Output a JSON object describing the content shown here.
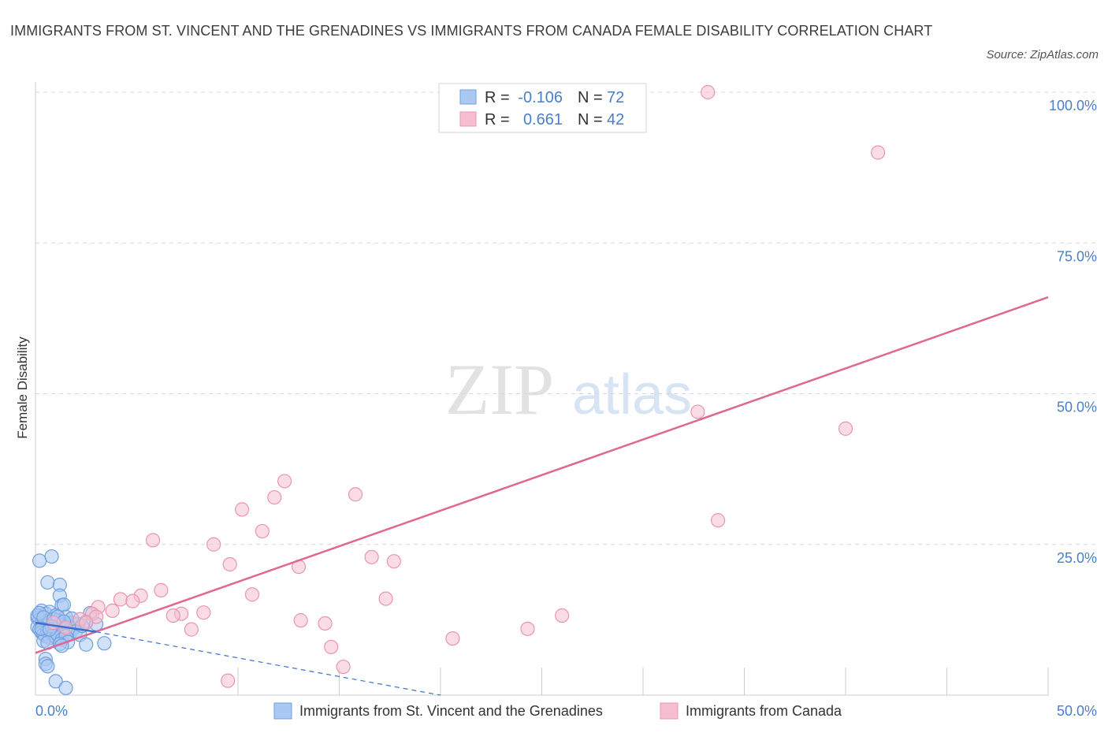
{
  "title": "IMMIGRANTS FROM ST. VINCENT AND THE GRENADINES VS IMMIGRANTS FROM CANADA FEMALE DISABILITY CORRELATION CHART",
  "source": "Source: ZipAtlas.com",
  "watermark": {
    "zip": "ZIP",
    "atlas": "atlas"
  },
  "colors": {
    "blue_fill": "#a9c8f2",
    "blue_stroke": "#6f9fe0",
    "blue_line": "#3a6fd0",
    "pink_fill": "#f6bfd0",
    "pink_stroke": "#e995b2",
    "pink_line": "#e06790",
    "grid": "#d8d8d8",
    "tick_label": "#4a7fc8"
  },
  "legend": {
    "rows": [
      {
        "r_label": "R =",
        "r_value": "-0.106",
        "n_label": "N =",
        "n_value": "72"
      },
      {
        "r_label": "R =",
        "r_value": "0.661",
        "n_label": "N =",
        "n_value": "42"
      }
    ]
  },
  "chart_data": {
    "type": "scatter",
    "title": "IMMIGRANTS FROM ST. VINCENT AND THE GRENADINES VS IMMIGRANTS FROM CANADA FEMALE DISABILITY CORRELATION CHART",
    "xlabel": "",
    "ylabel": "Female Disability",
    "xlim": [
      0,
      50
    ],
    "ylim": [
      0,
      100
    ],
    "x_tick_labels": [
      "0.0%",
      "50.0%"
    ],
    "y_ticks": [
      25,
      50,
      75,
      100
    ],
    "y_tick_labels": [
      "25.0%",
      "50.0%",
      "75.0%",
      "100.0%"
    ],
    "grid": true,
    "legend_position": "top-center",
    "series": [
      {
        "name": "Immigrants from St. Vincent and the Grenadines",
        "color": "#a9c8f2",
        "R": -0.106,
        "N": 72,
        "trend_solid": {
          "x": [
            0.0,
            3.0
          ],
          "y": [
            12.0,
            10.5
          ]
        },
        "trend_dashed": {
          "x": [
            3.0,
            20.0
          ],
          "y": [
            10.5,
            0.0
          ]
        },
        "points": [
          [
            0.2,
            22.3
          ],
          [
            0.8,
            23.0
          ],
          [
            0.6,
            18.7
          ],
          [
            1.2,
            18.3
          ],
          [
            1.2,
            16.5
          ],
          [
            1.3,
            14.9
          ],
          [
            1.4,
            15.0
          ],
          [
            0.3,
            14.0
          ],
          [
            0.5,
            13.5
          ],
          [
            0.7,
            13.8
          ],
          [
            1.0,
            13.2
          ],
          [
            1.5,
            13.0
          ],
          [
            2.7,
            13.6
          ],
          [
            2.5,
            12.2
          ],
          [
            0.1,
            12.8
          ],
          [
            0.2,
            12.5
          ],
          [
            0.3,
            12.0
          ],
          [
            0.4,
            11.8
          ],
          [
            0.5,
            12.3
          ],
          [
            0.6,
            11.5
          ],
          [
            0.7,
            12.1
          ],
          [
            0.8,
            11.2
          ],
          [
            0.9,
            11.9
          ],
          [
            1.0,
            11.0
          ],
          [
            1.1,
            12.4
          ],
          [
            1.2,
            10.8
          ],
          [
            1.3,
            11.6
          ],
          [
            1.4,
            10.5
          ],
          [
            1.6,
            11.4
          ],
          [
            1.7,
            10.2
          ],
          [
            1.8,
            12.0
          ],
          [
            1.9,
            11.1
          ],
          [
            2.0,
            10.6
          ],
          [
            2.1,
            11.8
          ],
          [
            2.2,
            10.0
          ],
          [
            0.1,
            11.3
          ],
          [
            0.2,
            10.9
          ],
          [
            0.3,
            10.4
          ],
          [
            0.4,
            10.1
          ],
          [
            0.5,
            9.8
          ],
          [
            0.6,
            10.7
          ],
          [
            0.7,
            9.5
          ],
          [
            0.8,
            10.3
          ],
          [
            0.9,
            9.9
          ],
          [
            1.0,
            9.6
          ],
          [
            1.1,
            10.0
          ],
          [
            1.3,
            9.2
          ],
          [
            1.5,
            9.8
          ],
          [
            1.6,
            8.8
          ],
          [
            0.4,
            9.0
          ],
          [
            0.6,
            8.7
          ],
          [
            1.2,
            8.5
          ],
          [
            1.3,
            8.2
          ],
          [
            2.5,
            8.4
          ],
          [
            3.4,
            8.6
          ],
          [
            3.0,
            11.8
          ],
          [
            0.1,
            13.2
          ],
          [
            0.2,
            13.6
          ],
          [
            0.4,
            12.9
          ],
          [
            0.9,
            12.6
          ],
          [
            1.1,
            13.0
          ],
          [
            1.8,
            12.7
          ],
          [
            0.3,
            11.0
          ],
          [
            0.5,
            6.0
          ],
          [
            0.5,
            5.2
          ],
          [
            0.6,
            4.8
          ],
          [
            1.0,
            2.3
          ],
          [
            1.5,
            1.2
          ],
          [
            0.8,
            11.4
          ],
          [
            1.4,
            12.2
          ],
          [
            2.3,
            11.5
          ],
          [
            0.7,
            10.9
          ]
        ]
      },
      {
        "name": "Immigrants from Canada",
        "color": "#f6bfd0",
        "R": 0.661,
        "N": 42,
        "trend": {
          "x": [
            0.0,
            50.0
          ],
          "y": [
            7.0,
            66.0
          ]
        },
        "points": [
          [
            33.2,
            100.0
          ],
          [
            41.6,
            90.0
          ],
          [
            32.7,
            47.0
          ],
          [
            40.0,
            44.2
          ],
          [
            12.3,
            35.5
          ],
          [
            11.8,
            32.8
          ],
          [
            15.8,
            33.3
          ],
          [
            10.2,
            30.8
          ],
          [
            11.2,
            27.2
          ],
          [
            33.7,
            29.0
          ],
          [
            5.8,
            25.7
          ],
          [
            8.8,
            25.0
          ],
          [
            9.6,
            21.7
          ],
          [
            13.0,
            21.3
          ],
          [
            16.6,
            22.9
          ],
          [
            17.7,
            22.2
          ],
          [
            6.2,
            17.4
          ],
          [
            10.7,
            16.7
          ],
          [
            17.3,
            16.0
          ],
          [
            5.2,
            16.5
          ],
          [
            4.2,
            15.9
          ],
          [
            4.8,
            15.6
          ],
          [
            3.1,
            14.6
          ],
          [
            3.8,
            14.0
          ],
          [
            2.8,
            13.5
          ],
          [
            3.0,
            13.0
          ],
          [
            7.2,
            13.5
          ],
          [
            8.3,
            13.7
          ],
          [
            6.8,
            13.2
          ],
          [
            2.2,
            12.6
          ],
          [
            2.5,
            12.0
          ],
          [
            0.9,
            12.0
          ],
          [
            1.5,
            11.2
          ],
          [
            13.1,
            12.4
          ],
          [
            14.3,
            11.9
          ],
          [
            7.7,
            10.9
          ],
          [
            26.0,
            13.2
          ],
          [
            24.3,
            11.0
          ],
          [
            20.6,
            9.4
          ],
          [
            14.6,
            8.0
          ],
          [
            15.2,
            4.7
          ],
          [
            9.5,
            2.4
          ]
        ]
      }
    ]
  }
}
